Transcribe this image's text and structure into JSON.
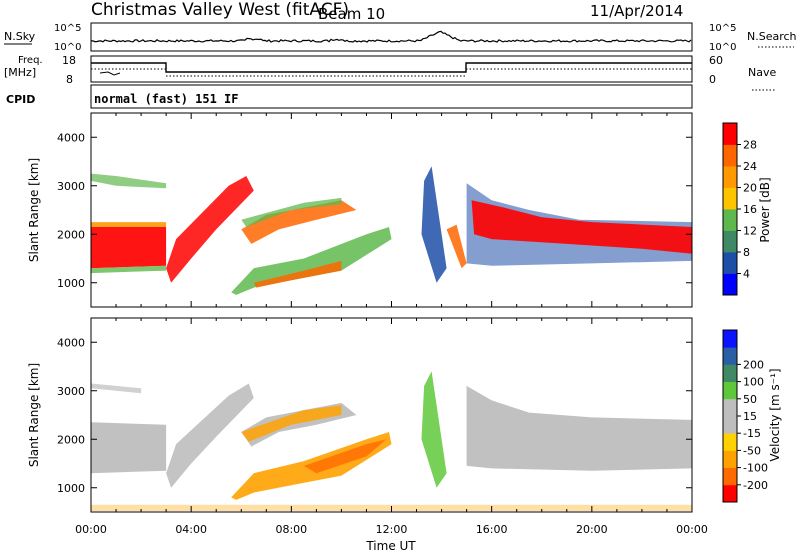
{
  "header": {
    "radar": "Christmas Valley West (fitACF)",
    "beam": "Beam 10",
    "date": "11/Apr/2014"
  },
  "strips": {
    "nsky_label": "N.Sky",
    "nsearch_label": "N.Search",
    "noise_ticks": [
      "10^5",
      "10^0"
    ],
    "freq_label_1": "Freq.",
    "freq_label_2": "[MHz]",
    "freq_ticks": [
      "18",
      "8"
    ],
    "nave_label": "Nave",
    "nave_ticks": [
      "60",
      "0"
    ],
    "cpid_label": "CPID",
    "cpid_value": "normal (fast) 151 IF"
  },
  "colors": {
    "power": [
      "#0000ff",
      "#1e4fa8",
      "#3f8a64",
      "#5fb84e",
      "#ffc400",
      "#ff9900",
      "#ff6600",
      "#ff0000"
    ],
    "velocity": [
      "#ff0000",
      "#ff6a00",
      "#ffa200",
      "#ffd100",
      "#bebebe",
      "#bebebe",
      "#5fc83a",
      "#3f8a64",
      "#2a5fa6",
      "#0a14ff"
    ]
  },
  "chart_data": [
    {
      "type": "heatmap",
      "name": "power",
      "ylabel": "Slant Range [km]",
      "yticks": [
        1000,
        2000,
        3000,
        4000
      ],
      "ylim": [
        500,
        4500
      ],
      "xlim": [
        0,
        24
      ],
      "colorbar_label": "Power [dB]",
      "colorbar_ticks": [
        "4",
        "8",
        "12",
        "16",
        "20",
        "24",
        "28"
      ],
      "colorbar_range": [
        0,
        32
      ]
    },
    {
      "type": "heatmap",
      "name": "velocity",
      "ylabel": "Slant Range [km]",
      "yticks": [
        1000,
        2000,
        3000,
        4000
      ],
      "ylim": [
        500,
        4500
      ],
      "xlim": [
        0,
        24
      ],
      "colorbar_label": "Velocity [m s⁻¹]",
      "colorbar_ticks": [
        "-200",
        "-100",
        "-50",
        "-15",
        "15",
        "50",
        "100",
        "200"
      ],
      "xlabel": "Time UT",
      "xticks": [
        "00:00",
        "04:00",
        "08:00",
        "12:00",
        "16:00",
        "20:00",
        "00:00"
      ],
      "xtick_hours": [
        0,
        4,
        8,
        12,
        16,
        20,
        24
      ]
    }
  ]
}
